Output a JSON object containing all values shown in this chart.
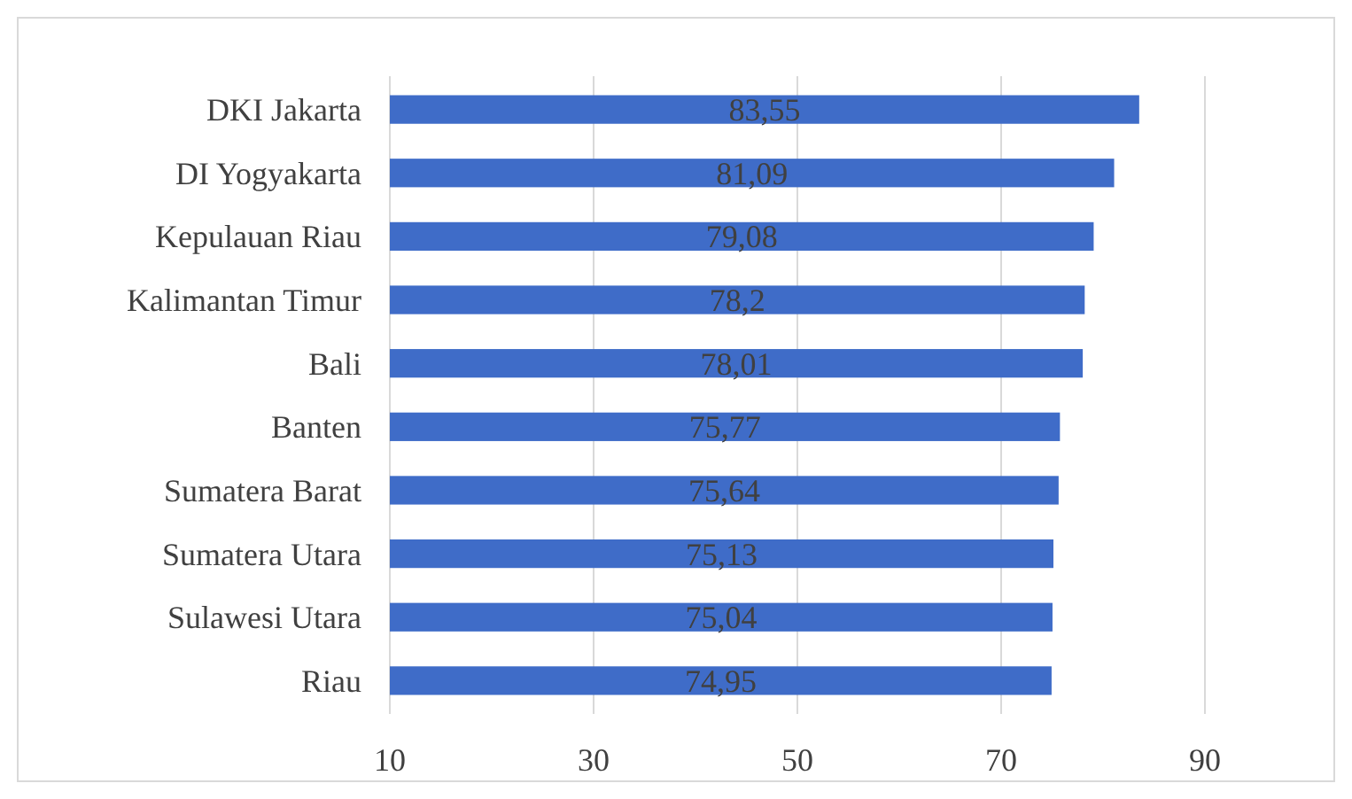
{
  "chart_data": {
    "type": "bar",
    "orientation": "horizontal",
    "categories": [
      "DKI Jakarta",
      "DI Yogyakarta",
      "Kepulauan Riau",
      "Kalimantan Timur",
      "Bali",
      "Banten",
      "Sumatera Barat",
      "Sumatera Utara",
      "Sulawesi Utara",
      "Riau"
    ],
    "values": [
      83.55,
      81.09,
      79.08,
      78.2,
      78.01,
      75.77,
      75.64,
      75.13,
      75.04,
      74.95
    ],
    "value_labels": [
      "83,55",
      "81,09",
      "79,08",
      "78,2",
      "78,01",
      "75,77",
      "75,64",
      "75,13",
      "75,04",
      "74,95"
    ],
    "color": "#3f6cc8",
    "xlim": [
      10,
      90
    ],
    "xticks": [
      10,
      30,
      50,
      70,
      90
    ],
    "grid": "x"
  }
}
